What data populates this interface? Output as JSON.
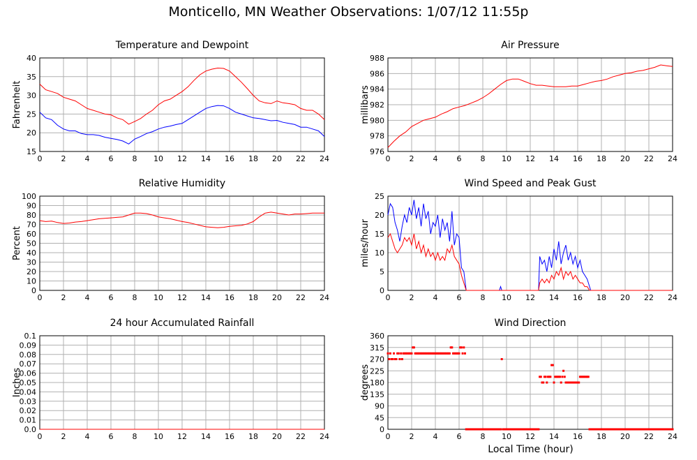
{
  "page": {
    "title": "Monticello, MN Weather Observations: 1/07/12 11:55p",
    "x_axis_label": "Local Time (hour)"
  },
  "colors": {
    "red": "#ff0000",
    "blue": "#0000ff",
    "grid": "#b0b0b0"
  },
  "chart_data": [
    {
      "id": "temperature",
      "type": "line",
      "title": "Temperature and Dewpoint",
      "ylabel": "Fahrenheit",
      "xlim": [
        0,
        24
      ],
      "ylim": [
        15,
        40
      ],
      "xticks": [
        "0",
        "2",
        "4",
        "6",
        "8",
        "10",
        "12",
        "14",
        "16",
        "18",
        "20",
        "22",
        "24"
      ],
      "yticks": [
        "15",
        "20",
        "25",
        "30",
        "35",
        "40"
      ],
      "grid": true,
      "series": [
        {
          "color": "#ff0000",
          "x": [
            0,
            0.5,
            1,
            1.5,
            2,
            2.5,
            3,
            3.5,
            4,
            4.5,
            5,
            5.5,
            6,
            6.5,
            7,
            7.5,
            8,
            8.5,
            9,
            9.5,
            10,
            10.5,
            11,
            11.5,
            12,
            12.5,
            13,
            13.5,
            14,
            14.5,
            15,
            15.5,
            16,
            16.5,
            17,
            17.5,
            18,
            18.5,
            19,
            19.5,
            20,
            20.5,
            21,
            21.5,
            22,
            22.5,
            23,
            23.5,
            24
          ],
          "y": [
            33,
            31.5,
            31,
            30.5,
            29.5,
            29,
            28.5,
            27.5,
            26.5,
            26,
            25.5,
            25,
            24.8,
            24,
            23.5,
            22.3,
            23,
            23.8,
            25,
            26,
            27.5,
            28.5,
            29,
            30,
            31,
            32.3,
            34,
            35.5,
            36.5,
            37,
            37.3,
            37.2,
            36.5,
            35,
            33.5,
            31.8,
            30,
            28.5,
            28,
            27.8,
            28.5,
            28,
            27.8,
            27.5,
            26.5,
            26,
            26,
            25,
            23.5
          ]
        },
        {
          "color": "#0000ff",
          "x": [
            0,
            0.5,
            1,
            1.5,
            2,
            2.5,
            3,
            3.5,
            4,
            4.5,
            5,
            5.5,
            6,
            6.5,
            7,
            7.5,
            8,
            8.5,
            9,
            9.5,
            10,
            10.5,
            11,
            11.5,
            12,
            12.5,
            13,
            13.5,
            14,
            14.5,
            15,
            15.5,
            16,
            16.5,
            17,
            17.5,
            18,
            18.5,
            19,
            19.5,
            20,
            20.5,
            21,
            21.5,
            22,
            22.5,
            23,
            23.5,
            24
          ],
          "y": [
            25.5,
            24,
            23.5,
            22,
            21,
            20.5,
            20.5,
            19.8,
            19.5,
            19.5,
            19.3,
            18.8,
            18.5,
            18.2,
            17.8,
            17,
            18.3,
            19,
            19.8,
            20.3,
            21,
            21.5,
            21.8,
            22.2,
            22.5,
            23.5,
            24.5,
            25.5,
            26.5,
            27,
            27.3,
            27.2,
            26.5,
            25.5,
            25,
            24.5,
            24,
            23.8,
            23.5,
            23.2,
            23.3,
            22.8,
            22.5,
            22.2,
            21.5,
            21.5,
            21,
            20.5,
            19
          ]
        }
      ]
    },
    {
      "id": "pressure",
      "type": "line",
      "title": "Air Pressure",
      "ylabel": "millibars",
      "xlim": [
        0,
        24
      ],
      "ylim": [
        976,
        988
      ],
      "xticks": [
        "0",
        "2",
        "4",
        "6",
        "8",
        "10",
        "12",
        "14",
        "16",
        "18",
        "20",
        "22",
        "24"
      ],
      "yticks": [
        "976",
        "978",
        "980",
        "982",
        "984",
        "986",
        "988"
      ],
      "grid": true,
      "series": [
        {
          "color": "#ff0000",
          "x": [
            0,
            0.5,
            1,
            1.5,
            2,
            2.5,
            3,
            3.5,
            4,
            4.5,
            5,
            5.5,
            6,
            6.5,
            7,
            7.5,
            8,
            8.5,
            9,
            9.5,
            10,
            10.5,
            11,
            11.5,
            12,
            12.5,
            13,
            13.5,
            14,
            14.5,
            15,
            15.5,
            16,
            16.5,
            17,
            17.5,
            18,
            18.5,
            19,
            19.5,
            20,
            20.5,
            21,
            21.5,
            22,
            22.5,
            23,
            23.5,
            24
          ],
          "y": [
            976.5,
            977.3,
            978,
            978.5,
            979.2,
            979.6,
            980,
            980.2,
            980.4,
            980.8,
            981.1,
            981.5,
            981.7,
            981.9,
            982.2,
            982.5,
            982.9,
            983.4,
            984,
            984.6,
            985.1,
            985.3,
            985.3,
            985,
            984.7,
            984.5,
            984.5,
            984.4,
            984.3,
            984.3,
            984.3,
            984.4,
            984.4,
            984.6,
            984.8,
            985,
            985.1,
            985.3,
            985.6,
            985.8,
            986,
            986.1,
            986.3,
            986.4,
            986.6,
            986.8,
            987.1,
            987,
            986.9
          ]
        }
      ]
    },
    {
      "id": "humidity",
      "type": "line",
      "title": "Relative Humidity",
      "ylabel": "Percent",
      "xlim": [
        0,
        24
      ],
      "ylim": [
        0,
        100
      ],
      "xticks": [
        "0",
        "2",
        "4",
        "6",
        "8",
        "10",
        "12",
        "14",
        "16",
        "18",
        "20",
        "22",
        "24"
      ],
      "yticks": [
        "0",
        "10",
        "20",
        "30",
        "40",
        "50",
        "60",
        "70",
        "80",
        "90",
        "100"
      ],
      "grid": true,
      "series": [
        {
          "color": "#ff0000",
          "x": [
            0,
            0.5,
            1,
            1.5,
            2,
            2.5,
            3,
            3.5,
            4,
            4.5,
            5,
            5.5,
            6,
            6.5,
            7,
            7.5,
            8,
            8.5,
            9,
            9.5,
            10,
            10.5,
            11,
            11.5,
            12,
            12.5,
            13,
            13.5,
            14,
            14.5,
            15,
            15.5,
            16,
            16.5,
            17,
            17.5,
            18,
            18.5,
            19,
            19.5,
            20,
            20.5,
            21,
            21.5,
            22,
            22.5,
            23,
            23.5,
            24
          ],
          "y": [
            74,
            73,
            73.5,
            72,
            71,
            71.5,
            72.5,
            73,
            74,
            75,
            76,
            76.5,
            77,
            77.5,
            78,
            80,
            82,
            82,
            81.5,
            80,
            78,
            77,
            76,
            74.5,
            73,
            72,
            70.5,
            69,
            67.5,
            67,
            66.5,
            67,
            68,
            68.5,
            69,
            70.5,
            73,
            78,
            82,
            83,
            82,
            81,
            80,
            81,
            81,
            81.5,
            82,
            82,
            82
          ]
        }
      ]
    },
    {
      "id": "wind_speed",
      "type": "line",
      "title": "Wind Speed and Peak Gust",
      "ylabel": "miles/hour",
      "xlim": [
        0,
        24
      ],
      "ylim": [
        0,
        25
      ],
      "xticks": [
        "0",
        "2",
        "4",
        "6",
        "8",
        "10",
        "12",
        "14",
        "16",
        "18",
        "20",
        "22",
        "24"
      ],
      "yticks": [
        "0",
        "5",
        "10",
        "15",
        "20",
        "25"
      ],
      "grid": true,
      "series": [
        {
          "color": "#0000ff",
          "x": [
            0,
            0.2,
            0.4,
            0.6,
            0.8,
            1,
            1.2,
            1.4,
            1.6,
            1.8,
            2,
            2.2,
            2.4,
            2.6,
            2.8,
            3,
            3.2,
            3.4,
            3.6,
            3.8,
            4,
            4.2,
            4.4,
            4.6,
            4.8,
            5,
            5.2,
            5.4,
            5.6,
            5.8,
            6,
            6.2,
            6.4,
            6.6,
            9.4,
            9.5,
            9.6,
            12.7,
            12.8,
            13,
            13.2,
            13.4,
            13.6,
            13.8,
            14,
            14.2,
            14.4,
            14.6,
            14.8,
            15,
            15.2,
            15.4,
            15.6,
            15.8,
            16,
            16.2,
            16.4,
            16.6,
            16.8,
            17,
            17.1,
            24
          ],
          "y": [
            20,
            23,
            22,
            18,
            16,
            13,
            17,
            20,
            18,
            22,
            20,
            24,
            19,
            22,
            17,
            23,
            19,
            21,
            15,
            18,
            17,
            20,
            14,
            19,
            16,
            18,
            13,
            21,
            12,
            15,
            14,
            6,
            5,
            0,
            0,
            1,
            0,
            0,
            9,
            7,
            8,
            5,
            9,
            6,
            11,
            8,
            13,
            7,
            10,
            12,
            8,
            10,
            7,
            9,
            6,
            8,
            5,
            4,
            3,
            1,
            0,
            0
          ]
        },
        {
          "color": "#ff0000",
          "x": [
            0,
            0.2,
            0.4,
            0.6,
            0.8,
            1,
            1.2,
            1.4,
            1.6,
            1.8,
            2,
            2.2,
            2.4,
            2.6,
            2.8,
            3,
            3.2,
            3.4,
            3.6,
            3.8,
            4,
            4.2,
            4.4,
            4.6,
            4.8,
            5,
            5.2,
            5.4,
            5.6,
            5.8,
            6,
            6.2,
            6.4,
            6.6,
            12.7,
            12.8,
            13,
            13.2,
            13.4,
            13.6,
            13.8,
            14,
            14.2,
            14.4,
            14.6,
            14.8,
            15,
            15.2,
            15.4,
            15.6,
            15.8,
            16,
            16.2,
            16.4,
            16.6,
            16.8,
            17,
            24
          ],
          "y": [
            14,
            15,
            13,
            11,
            10,
            11,
            12,
            14,
            13,
            14,
            12,
            15,
            11,
            13,
            10,
            12,
            9,
            11,
            9,
            10,
            8,
            10,
            8,
            9,
            8,
            11,
            10,
            12,
            9,
            8,
            7,
            4,
            2,
            0,
            0,
            2,
            3,
            2,
            3,
            2,
            4,
            3,
            5,
            4,
            6,
            3,
            5,
            4,
            5,
            3,
            4,
            3,
            2,
            2,
            1,
            1,
            0,
            0
          ]
        }
      ]
    },
    {
      "id": "rainfall",
      "type": "line",
      "title": "24 hour Accumulated Rainfall",
      "ylabel": "Inches",
      "xlim": [
        0,
        24
      ],
      "ylim": [
        0,
        0.1
      ],
      "xticks": [
        "0",
        "2",
        "4",
        "6",
        "8",
        "10",
        "12",
        "14",
        "16",
        "18",
        "20",
        "22",
        "24"
      ],
      "yticks": [
        "0.0",
        "0.01",
        "0.02",
        "0.03",
        "0.04",
        "0.05",
        "0.06",
        "0.07",
        "0.08",
        "0.09",
        "0.1"
      ],
      "grid": true,
      "series": [
        {
          "color": "#ff0000",
          "x": [
            0,
            24
          ],
          "y": [
            0,
            0
          ]
        }
      ]
    },
    {
      "id": "wind_direction",
      "type": "scatter",
      "title": "Wind Direction",
      "ylabel": "degrees",
      "xlim": [
        0,
        24
      ],
      "ylim": [
        0,
        360
      ],
      "xticks": [
        "0",
        "2",
        "4",
        "6",
        "8",
        "10",
        "12",
        "14",
        "16",
        "18",
        "20",
        "22",
        "24"
      ],
      "yticks": [
        "0",
        "45",
        "90",
        "135",
        "180",
        "225",
        "270",
        "315",
        "360"
      ],
      "grid": true,
      "series": [
        {
          "color": "#ff0000",
          "x": [
            0,
            0.1,
            0.2,
            0.3,
            0.4,
            0.5,
            0.6,
            0.7,
            0.8,
            0.9,
            1.0,
            1.1,
            1.2,
            1.3,
            1.4,
            1.5,
            1.6,
            1.7,
            1.8,
            1.9,
            2.0,
            2.1,
            2.2,
            2.3,
            2.4,
            2.5,
            2.6,
            2.7,
            2.8,
            2.9,
            3.0,
            3.1,
            3.2,
            3.3,
            3.4,
            3.5,
            3.6,
            3.7,
            3.8,
            3.9,
            4.0,
            4.1,
            4.2,
            4.3,
            4.4,
            4.5,
            4.6,
            4.7,
            4.8,
            4.9,
            5.0,
            5.1,
            5.2,
            5.3,
            5.4,
            5.5,
            5.6,
            5.7,
            5.8,
            5.9,
            6.0,
            6.1,
            6.2,
            6.3,
            6.4,
            6.5,
            9.6,
            12.8,
            12.9,
            13.0,
            13.1,
            13.2,
            13.3,
            13.4,
            13.5,
            13.6,
            13.7,
            13.8,
            13.9,
            14.0,
            14.1,
            14.2,
            14.3,
            14.4,
            14.5,
            14.6,
            14.7,
            14.8,
            14.9,
            15.0,
            15.1,
            15.2,
            15.3,
            15.4,
            15.5,
            15.6,
            15.7,
            15.8,
            15.9,
            16.0,
            16.1,
            16.2,
            16.3,
            16.4,
            16.5,
            16.6,
            16.7,
            16.8,
            16.9
          ],
          "y": [
            292,
            270,
            292,
            270,
            270,
            292,
            270,
            270,
            292,
            292,
            270,
            292,
            270,
            292,
            292,
            292,
            292,
            292,
            292,
            292,
            292,
            315,
            315,
            292,
            292,
            292,
            292,
            292,
            292,
            292,
            292,
            292,
            292,
            292,
            292,
            292,
            292,
            292,
            292,
            292,
            292,
            292,
            292,
            292,
            292,
            292,
            292,
            292,
            292,
            292,
            292,
            292,
            292,
            315,
            315,
            292,
            292,
            292,
            292,
            292,
            292,
            315,
            315,
            292,
            315,
            292,
            270,
            202,
            202,
            180,
            180,
            202,
            202,
            180,
            202,
            202,
            202,
            247,
            247,
            180,
            202,
            202,
            202,
            202,
            202,
            180,
            202,
            225,
            202,
            180,
            180,
            180,
            180,
            180,
            180,
            180,
            180,
            180,
            180,
            180,
            180,
            202,
            202,
            202,
            202,
            202,
            202,
            202,
            202
          ],
          "x_zero_runs": [
            [
              6.6,
              9.5
            ],
            [
              9.7,
              12.7
            ],
            [
              17.0,
              24.0
            ]
          ]
        }
      ]
    }
  ]
}
